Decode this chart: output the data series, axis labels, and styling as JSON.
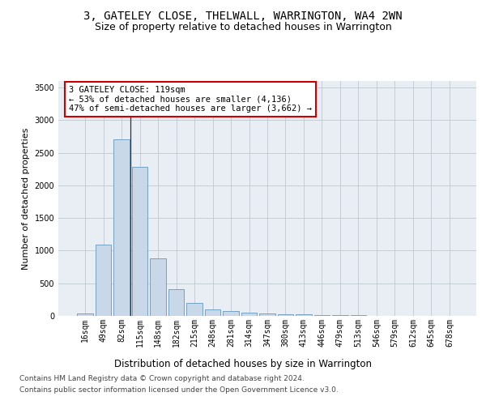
{
  "title": "3, GATELEY CLOSE, THELWALL, WARRINGTON, WA4 2WN",
  "subtitle": "Size of property relative to detached houses in Warrington",
  "xlabel": "Distribution of detached houses by size in Warrington",
  "ylabel": "Number of detached properties",
  "categories": [
    "16sqm",
    "49sqm",
    "82sqm",
    "115sqm",
    "148sqm",
    "182sqm",
    "215sqm",
    "248sqm",
    "281sqm",
    "314sqm",
    "347sqm",
    "380sqm",
    "413sqm",
    "446sqm",
    "479sqm",
    "513sqm",
    "546sqm",
    "579sqm",
    "612sqm",
    "645sqm",
    "678sqm"
  ],
  "values": [
    40,
    1090,
    2710,
    2290,
    880,
    415,
    195,
    105,
    75,
    50,
    40,
    25,
    22,
    17,
    10,
    8,
    5,
    4,
    3,
    2,
    2
  ],
  "bar_color": "#c8d8e8",
  "bar_edge_color": "#6699bb",
  "highlight_index": 3,
  "highlight_line_color": "#333333",
  "annotation_text": "3 GATELEY CLOSE: 119sqm\n← 53% of detached houses are smaller (4,136)\n47% of semi-detached houses are larger (3,662) →",
  "annotation_box_color": "#ffffff",
  "annotation_box_edge_color": "#cc0000",
  "ylim": [
    0,
    3600
  ],
  "yticks": [
    0,
    500,
    1000,
    1500,
    2000,
    2500,
    3000,
    3500
  ],
  "grid_color": "#c0c8d0",
  "background_color": "#e8eef4",
  "footer_line1": "Contains HM Land Registry data © Crown copyright and database right 2024.",
  "footer_line2": "Contains public sector information licensed under the Open Government Licence v3.0.",
  "title_fontsize": 10,
  "subtitle_fontsize": 9,
  "xlabel_fontsize": 8.5,
  "ylabel_fontsize": 8,
  "tick_fontsize": 7,
  "annotation_fontsize": 7.5,
  "footer_fontsize": 6.5
}
